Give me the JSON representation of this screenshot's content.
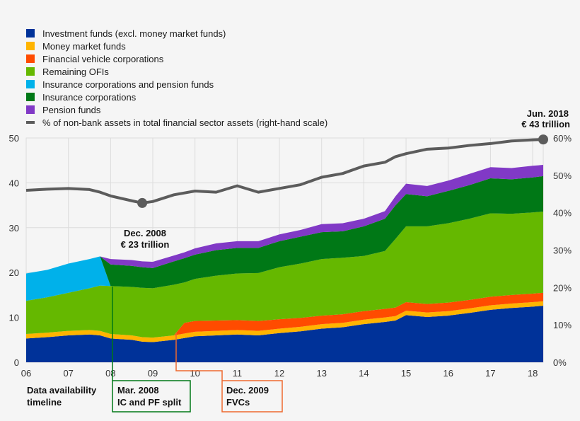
{
  "chart_data": {
    "type": "area",
    "stacked": true,
    "x": [
      2006,
      2006.5,
      2007,
      2007.5,
      2007.75,
      2008,
      2008.5,
      2008.75,
      2009,
      2009.5,
      2009.75,
      2010,
      2010.5,
      2011,
      2011.5,
      2012,
      2012.5,
      2013,
      2013.5,
      2014,
      2014.5,
      2014.75,
      2015,
      2015.5,
      2016,
      2016.5,
      2017,
      2017.5,
      2018,
      2018.25
    ],
    "x_tick_labels": [
      "06",
      "07",
      "08",
      "09",
      "10",
      "11",
      "12",
      "13",
      "14",
      "15",
      "16",
      "17",
      "18"
    ],
    "x_tick_values": [
      2006,
      2007,
      2008,
      2009,
      2010,
      2011,
      2012,
      2013,
      2014,
      2015,
      2016,
      2017,
      2018
    ],
    "ylim": [
      0,
      50
    ],
    "y_ticks": [
      0,
      10,
      20,
      30,
      40,
      50
    ],
    "y2lim": [
      0,
      60
    ],
    "y2_tick_labels": [
      "0%",
      "10%",
      "20%",
      "30%",
      "40%",
      "50%",
      "60%"
    ],
    "grid": true,
    "legend_placement": "top-left",
    "series": [
      {
        "name": "Investment funds (excl. money market funds)",
        "color": "#003299",
        "values": [
          5.3,
          5.6,
          6.0,
          6.2,
          6.0,
          5.3,
          5.0,
          4.6,
          4.5,
          5.0,
          5.4,
          5.8,
          6.0,
          6.2,
          6.0,
          6.5,
          6.9,
          7.5,
          7.8,
          8.5,
          9.0,
          9.3,
          10.5,
          10.1,
          10.4,
          11.0,
          11.7,
          12.1,
          12.4,
          12.6
        ]
      },
      {
        "name": "Money market funds",
        "color": "#FFB400",
        "values": [
          1.0,
          1.0,
          1.0,
          1.0,
          1.0,
          1.0,
          1.0,
          1.0,
          1.0,
          1.0,
          1.0,
          1.0,
          1.0,
          1.0,
          1.0,
          1.0,
          1.0,
          1.0,
          1.0,
          1.0,
          1.0,
          1.0,
          1.0,
          1.0,
          1.0,
          1.0,
          1.0,
          1.0,
          1.0,
          1.0
        ]
      },
      {
        "name": "Financial vehicle corporations",
        "color": "#FF4B00",
        "values": [
          0,
          0,
          0,
          0,
          0,
          0,
          0,
          0,
          0,
          0,
          2.4,
          2.4,
          2.3,
          2.2,
          2.2,
          2.1,
          2.0,
          1.9,
          1.9,
          1.9,
          1.9,
          1.9,
          1.9,
          1.9,
          1.9,
          1.9,
          1.9,
          1.9,
          1.9,
          1.9
        ]
      },
      {
        "name": "Remaining OFIs",
        "color": "#65B800",
        "values": [
          7.4,
          7.9,
          8.5,
          9.3,
          10.1,
          10.7,
          10.8,
          11.0,
          11.0,
          11.3,
          9.0,
          9.4,
          10.0,
          10.4,
          10.7,
          11.6,
          12.1,
          12.6,
          12.6,
          12.3,
          12.9,
          15.3,
          16.9,
          17.3,
          17.7,
          18.1,
          18.6,
          18.1,
          18.1,
          18.1
        ]
      },
      {
        "name": "Insurance corporations and pension funds",
        "color": "#00B1EA",
        "values": [
          6.1,
          6.1,
          6.5,
          6.5,
          6.5,
          0,
          null,
          null,
          null,
          null,
          null,
          null,
          null,
          null,
          null,
          null,
          null,
          null,
          null,
          null,
          null,
          null,
          null,
          null,
          null,
          null,
          null,
          null,
          null,
          null
        ]
      },
      {
        "name": "Insurance corporations",
        "color": "#007816",
        "values": [
          null,
          null,
          null,
          null,
          0,
          4.8,
          4.7,
          4.6,
          4.5,
          5.2,
          5.4,
          5.4,
          5.7,
          5.7,
          5.6,
          5.8,
          6.0,
          6.0,
          5.9,
          6.6,
          7.2,
          7.5,
          7.2,
          6.7,
          7.2,
          7.5,
          7.8,
          7.7,
          7.8,
          7.9
        ]
      },
      {
        "name": "Pension funds",
        "color": "#8139C6",
        "values": [
          null,
          null,
          null,
          null,
          0,
          1.2,
          1.3,
          1.3,
          1.4,
          1.3,
          1.3,
          1.4,
          1.5,
          1.5,
          1.5,
          1.5,
          1.5,
          1.8,
          1.8,
          1.7,
          1.7,
          2.0,
          2.3,
          2.3,
          2.3,
          2.5,
          2.5,
          2.5,
          2.6,
          2.5
        ]
      }
    ],
    "line_series": {
      "name": "% of non-bank assets in total financial sector assets (right-hand scale)",
      "color": "#5C5C5C",
      "axis": "right",
      "values": [
        46.0,
        46.3,
        46.5,
        46.2,
        45.5,
        44.5,
        43.2,
        42.6,
        43.0,
        44.8,
        45.3,
        45.8,
        45.5,
        47.2,
        45.5,
        46.5,
        47.5,
        49.5,
        50.5,
        52.5,
        53.5,
        55.0,
        55.8,
        57.0,
        57.3,
        58.0,
        58.5,
        59.2,
        59.5,
        59.6
      ]
    },
    "annotations": [
      {
        "line1": "Dec. 2008",
        "line2": "€ 23 trillion",
        "x": 2008.75
      },
      {
        "line1": "Jun. 2018",
        "line2": "€ 43 trillion",
        "x": 2018.25
      }
    ],
    "timeline": {
      "label_line1": "Data availability",
      "label_line2": "timeline",
      "boxes": [
        {
          "line1": "Mar. 2008",
          "line2": "IC and PF split",
          "color": "#007816"
        },
        {
          "line1": "Dec. 2009",
          "line2": "FVCs",
          "color": "#EE6A2E"
        }
      ]
    }
  }
}
